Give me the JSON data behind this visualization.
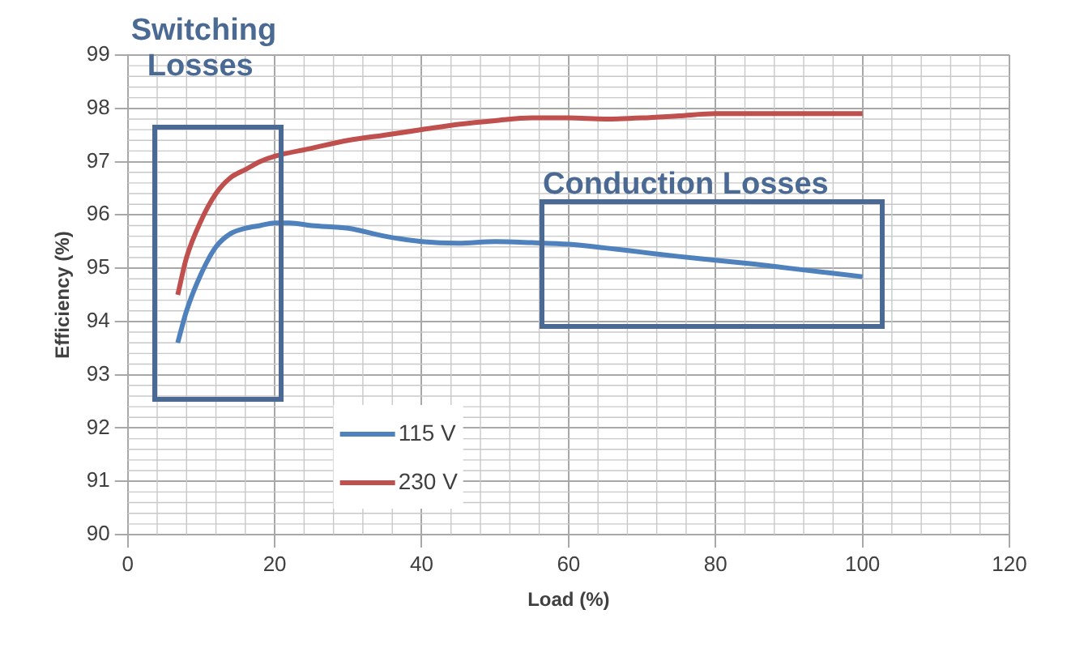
{
  "chart_data": {
    "type": "line",
    "xlabel": "Load (%)",
    "ylabel": "Efficiency (%)",
    "annotations": [
      "Switching Losses",
      "Conduction Losses"
    ],
    "series": [
      {
        "name": "115 V",
        "color": "#4f81bd",
        "x": [
          6.8,
          8,
          10,
          12,
          14,
          16,
          18,
          20,
          22,
          25,
          30,
          35,
          40,
          45,
          50,
          55,
          60,
          65,
          70,
          75,
          80,
          85,
          90,
          95,
          100
        ],
        "values": [
          93.6,
          94.2,
          94.9,
          95.4,
          95.65,
          95.75,
          95.8,
          95.85,
          95.85,
          95.8,
          95.75,
          95.6,
          95.5,
          95.47,
          95.5,
          95.48,
          95.45,
          95.38,
          95.3,
          95.22,
          95.15,
          95.08,
          95.0,
          94.92,
          94.84
        ]
      },
      {
        "name": "230 V",
        "color": "#c0504d",
        "x": [
          6.8,
          8,
          10,
          12,
          14,
          16,
          18,
          20,
          25,
          30,
          35,
          40,
          45,
          50,
          55,
          60,
          65,
          70,
          75,
          80,
          85,
          90,
          95,
          100
        ],
        "values": [
          94.5,
          95.2,
          95.9,
          96.4,
          96.7,
          96.85,
          97.0,
          97.1,
          97.25,
          97.4,
          97.5,
          97.6,
          97.7,
          97.77,
          97.82,
          97.82,
          97.8,
          97.82,
          97.86,
          97.9,
          97.9,
          97.9,
          97.9,
          97.9
        ]
      }
    ],
    "xlim": [
      0,
      120
    ],
    "xticks": [
      0,
      20,
      40,
      60,
      80,
      100,
      120
    ],
    "ylim": [
      90,
      99
    ],
    "yticks": [
      90,
      91,
      92,
      93,
      94,
      95,
      96,
      97,
      98,
      99
    ],
    "grid": true,
    "legend": "bottom left",
    "marker": "none",
    "line_style": "solid"
  }
}
